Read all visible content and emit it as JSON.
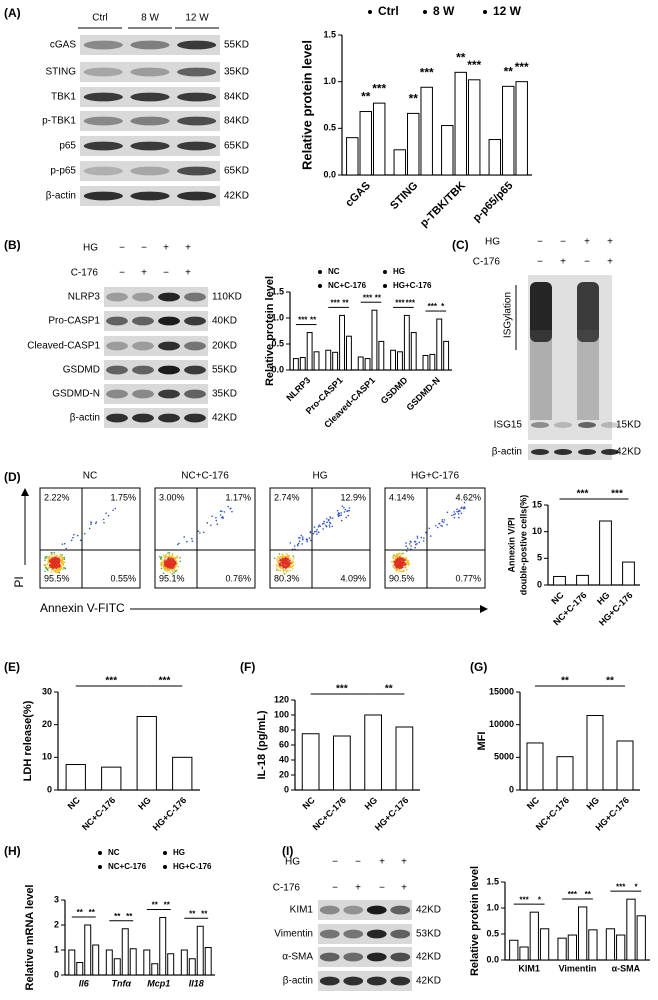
{
  "panel_labels": [
    "(A)",
    "(B)",
    "(C)",
    "(D)",
    "(E)",
    "(F)",
    "(G)",
    "(H)",
    "(I)"
  ],
  "blot_a": {
    "lanes": [
      "Ctrl",
      "8 W",
      "12 W"
    ],
    "rows": [
      {
        "name": "cGAS",
        "size": "55KD"
      },
      {
        "name": "STING",
        "size": "35KD"
      },
      {
        "name": "TBK1",
        "size": "84KD"
      },
      {
        "name": "p-TBK1",
        "size": "84KD"
      },
      {
        "name": "p65",
        "size": "65KD"
      },
      {
        "name": "p-p65",
        "size": "65KD"
      },
      {
        "name": "β-actin",
        "size": "42KD"
      }
    ]
  },
  "blot_b": {
    "conditions": [
      {
        "name": "HG",
        "signs": [
          "−",
          "−",
          "+",
          "+"
        ]
      },
      {
        "name": "C-176",
        "signs": [
          "−",
          "+",
          "−",
          "+"
        ]
      }
    ],
    "rows": [
      {
        "name": "NLRP3",
        "size": "110KD"
      },
      {
        "name": "Pro-CASP1",
        "size": "40KD"
      },
      {
        "name": "Cleaved-CASP1",
        "size": "20KD"
      },
      {
        "name": "GSDMD",
        "size": "55KD"
      },
      {
        "name": "GSDMD-N",
        "size": "35KD"
      },
      {
        "name": "β-actin",
        "size": "42KD"
      }
    ]
  },
  "blot_c": {
    "conditions": [
      {
        "name": "HG",
        "signs": [
          "−",
          "−",
          "+",
          "+"
        ]
      },
      {
        "name": "C-176",
        "signs": [
          "−",
          "+",
          "−",
          "+"
        ]
      }
    ],
    "smear_label": "ISGylation",
    "rows": [
      {
        "name": "ISG15",
        "size": "15KD"
      },
      {
        "name": "β-actin",
        "size": "42KD"
      }
    ]
  },
  "blot_i": {
    "conditions": [
      {
        "name": "HG",
        "signs": [
          "−",
          "−",
          "+",
          "+"
        ]
      },
      {
        "name": "C-176",
        "signs": [
          "−",
          "+",
          "−",
          "+"
        ]
      }
    ],
    "rows": [
      {
        "name": "KIM1",
        "size": "42KD"
      },
      {
        "name": "Vimentin",
        "size": "53KD"
      },
      {
        "name": "α-SMA",
        "size": "42KD"
      },
      {
        "name": "β-actin",
        "size": "42KD"
      }
    ]
  },
  "flow": {
    "y_label": "PI",
    "x_label": "Annexin V-FITC",
    "plots": [
      {
        "title": "NC",
        "quadrants": [
          "2.22%",
          "1.75%",
          "95.5%",
          "0.55%"
        ]
      },
      {
        "title": "NC+C-176",
        "quadrants": [
          "3.00%",
          "1.17%",
          "95.1%",
          "0.76%"
        ]
      },
      {
        "title": "HG",
        "quadrants": [
          "2.74%",
          "12.9%",
          "80.3%",
          "4.09%"
        ]
      },
      {
        "title": "HG+C-176",
        "quadrants": [
          "4.14%",
          "4.62%",
          "90.5%",
          "0.77%"
        ]
      }
    ]
  },
  "chart_data": [
    {
      "type": "bar",
      "ylabel": "Relative protein level",
      "categories": [
        "cGAS",
        "STING",
        "p-TBK/TBK",
        "p-p65/p65"
      ],
      "edgecolor": "#000000",
      "legend": true,
      "series": [
        {
          "name": "Ctrl",
          "color": "#ffffff",
          "values": [
            0.4,
            0.27,
            0.53,
            0.38
          ]
        },
        {
          "name": "8 W",
          "color": "#ffffff",
          "values": [
            0.68,
            0.66,
            1.1,
            0.95
          ]
        },
        {
          "name": "12 W",
          "color": "#ffffff",
          "values": [
            0.77,
            0.94,
            1.02,
            1.0
          ]
        }
      ],
      "annotations": [
        [
          "**",
          "***"
        ],
        [
          "**",
          "***"
        ],
        [
          "**",
          "***"
        ],
        [
          "**",
          "***"
        ]
      ],
      "ylim": [
        0,
        1.5
      ],
      "yticks": [
        {
          "value": 0,
          "label": "0.0"
        },
        0.5,
        {
          "value": 1,
          "label": "1.0"
        },
        1.5
      ]
    },
    {
      "type": "bar",
      "ylabel": "Relative protein level",
      "categories": [
        "NLRP3",
        "Pro-CASP1",
        "Cleaved-CASP1",
        "GSDMD",
        "GSDMD-N"
      ],
      "edgecolor": "#000000",
      "legend": true,
      "series": [
        {
          "name": "NC",
          "color": "#ffffff",
          "values": [
            0.22,
            0.38,
            0.25,
            0.38,
            0.28
          ]
        },
        {
          "name": "NC+C-176",
          "color": "#ffffff",
          "values": [
            0.24,
            0.34,
            0.22,
            0.35,
            0.3
          ]
        },
        {
          "name": "HG",
          "color": "#ffffff",
          "values": [
            0.72,
            1.05,
            1.15,
            1.05,
            0.98
          ]
        },
        {
          "name": "HG+C-176",
          "color": "#ffffff",
          "values": [
            0.35,
            0.65,
            0.55,
            0.72,
            0.55
          ]
        }
      ],
      "annotations": [
        [
          "***",
          "**"
        ],
        [
          "***",
          "**"
        ],
        [
          "***",
          "**"
        ],
        [
          "***",
          "***"
        ],
        [
          "***",
          "*"
        ]
      ],
      "ylim": [
        0,
        1.5
      ],
      "yticks": [
        {
          "value": 0,
          "label": "0.0"
        },
        0.5,
        {
          "value": 1,
          "label": "1.0"
        },
        1.5
      ]
    },
    {
      "type": "bar",
      "ylabel": [
        "Annexin V/PI",
        "double-postive cells(%)"
      ],
      "categories": [
        "NC",
        "NC+C-176",
        "HG",
        "HG+C-176"
      ],
      "values": [
        1.6,
        1.8,
        12,
        4.3
      ],
      "color": "#ffffff",
      "edgecolor": "#000000",
      "annotations": [
        "***",
        "***"
      ],
      "ylim": [
        0,
        15
      ],
      "yticks": [
        0,
        5,
        10,
        15
      ]
    },
    {
      "type": "bar",
      "ylabel": "LDH release(%)",
      "categories": [
        "NC",
        "NC+C-176",
        "HG",
        "HG+C-176"
      ],
      "values": [
        7.8,
        7.0,
        22.5,
        10
      ],
      "color": "#ffffff",
      "edgecolor": "#000000",
      "annotations": [
        "***",
        "***"
      ],
      "ylim": [
        0,
        30
      ],
      "yticks": [
        0,
        10,
        20,
        30
      ]
    },
    {
      "type": "bar",
      "ylabel": "IL-18 (pg/mL)",
      "categories": [
        "NC",
        "NC+C-176",
        "HG",
        "HG+C-176"
      ],
      "values": [
        75,
        72,
        100,
        84
      ],
      "color": "#ffffff",
      "edgecolor": "#000000",
      "annotations": [
        "***",
        "**"
      ],
      "ylim": [
        0,
        120
      ],
      "yticks": [
        0,
        20,
        40,
        60,
        80,
        100,
        120
      ]
    },
    {
      "type": "bar",
      "ylabel": "MFI",
      "categories": [
        "NC",
        "NC+C-176",
        "HG",
        "HG+C-176"
      ],
      "values": [
        7200,
        5100,
        11400,
        7500
      ],
      "color": "#ffffff",
      "edgecolor": "#000000",
      "annotations": [
        "**",
        "**"
      ],
      "ylim": [
        0,
        15000
      ],
      "yticks": [
        0,
        5000,
        10000,
        15000
      ]
    },
    {
      "type": "bar",
      "ylabel": "Relative mRNA level",
      "categories": [
        "Il6",
        "Tnfα",
        "Mcp1",
        "Il18"
      ],
      "xtick_italic": true,
      "edgecolor": "#000000",
      "legend": true,
      "series": [
        {
          "name": "NC",
          "color": "#ffffff",
          "values": [
            1,
            1,
            1,
            1
          ]
        },
        {
          "name": "NC+C-176",
          "color": "#ffffff",
          "values": [
            0.5,
            0.65,
            0.45,
            0.65
          ]
        },
        {
          "name": "HG",
          "color": "#ffffff",
          "values": [
            2.0,
            1.85,
            2.3,
            1.95
          ]
        },
        {
          "name": "HG+C-176",
          "color": "#ffffff",
          "values": [
            1.2,
            1.05,
            0.85,
            1.1
          ]
        }
      ],
      "annotations": [
        [
          "**",
          "**"
        ],
        [
          "**",
          "**"
        ],
        [
          "**",
          "**"
        ],
        [
          "**",
          "**"
        ]
      ],
      "ylim": [
        0,
        3
      ],
      "yticks": [
        0,
        1,
        2,
        3
      ]
    },
    {
      "type": "bar",
      "ylabel": "Relative protein level",
      "categories": [
        "KIM1",
        "Vimentin",
        "α-SMA"
      ],
      "edgecolor": "#000000",
      "series": [
        {
          "color": "#ffffff",
          "values": [
            0.38,
            0.42,
            0.6
          ]
        },
        {
          "color": "#ffffff",
          "values": [
            0.25,
            0.48,
            0.48
          ]
        },
        {
          "color": "#ffffff",
          "values": [
            0.92,
            1.02,
            1.17
          ]
        },
        {
          "color": "#ffffff",
          "values": [
            0.6,
            0.58,
            0.85
          ]
        }
      ],
      "annotations": [
        [
          "***",
          "*"
        ],
        [
          "***",
          "**"
        ],
        [
          "***",
          "*"
        ]
      ],
      "ylim": [
        0,
        1.5
      ],
      "yticks": [
        {
          "value": 0,
          "label": "0.0"
        },
        0.5,
        {
          "value": 1,
          "label": "1.0"
        },
        1.5
      ]
    }
  ]
}
